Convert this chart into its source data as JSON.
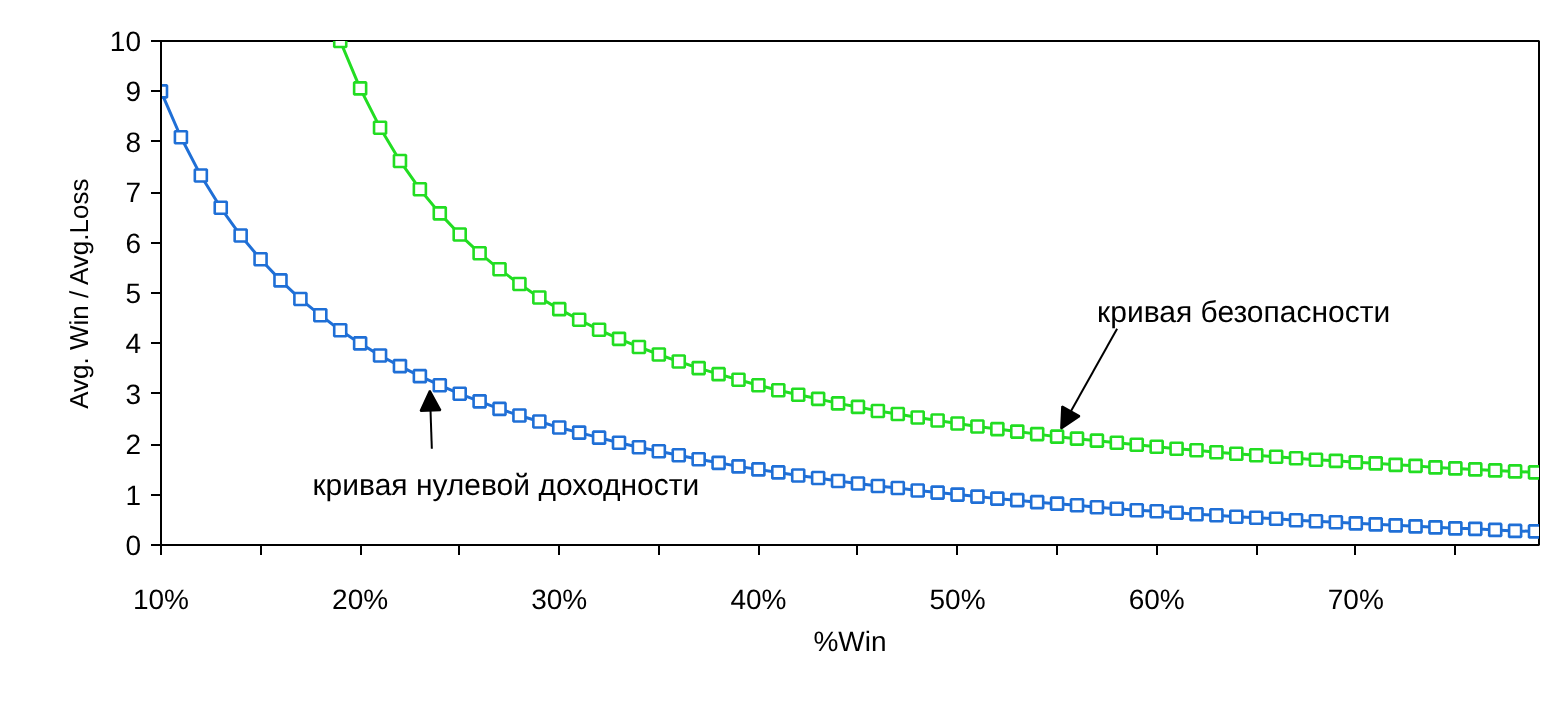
{
  "chart_data": {
    "type": "line",
    "xlabel": "%Win",
    "ylabel": "Avg. Win / Avg.Loss",
    "xlim": [
      10,
      79.2
    ],
    "ylim": [
      0,
      10
    ],
    "xticks": [
      {
        "value": 10,
        "label": "10%"
      },
      {
        "value": 15,
        "label": null
      },
      {
        "value": 20,
        "label": "20%"
      },
      {
        "value": 25,
        "label": null
      },
      {
        "value": 30,
        "label": "30%"
      },
      {
        "value": 35,
        "label": null
      },
      {
        "value": 40,
        "label": "40%"
      },
      {
        "value": 45,
        "label": null
      },
      {
        "value": 50,
        "label": "50%"
      },
      {
        "value": 55,
        "label": null
      },
      {
        "value": 60,
        "label": "60%"
      },
      {
        "value": 65,
        "label": null
      },
      {
        "value": 70,
        "label": "70%"
      },
      {
        "value": 75,
        "label": null
      }
    ],
    "yticks": [
      0,
      1,
      2,
      3,
      4,
      5,
      6,
      7,
      8,
      9,
      10
    ],
    "grid": false,
    "marker": "square",
    "line_style": "solid",
    "annotations": [
      {
        "text": "кривая безопасности",
        "x": 55,
        "y": 2.15
      },
      {
        "text": "кривая нулевой доходности",
        "x": 23.5,
        "y": 3.3
      }
    ],
    "series": [
      {
        "color": "#1f6fd6",
        "x": [
          10,
          11,
          12,
          13,
          14,
          15,
          16,
          17,
          18,
          19,
          20,
          21,
          22,
          23,
          24,
          25,
          26,
          27,
          28,
          29,
          30,
          31,
          32,
          33,
          34,
          35,
          36,
          37,
          38,
          39,
          40,
          41,
          42,
          43,
          44,
          45,
          46,
          47,
          48,
          49,
          50,
          51,
          52,
          53,
          54,
          55,
          56,
          57,
          58,
          59,
          60,
          61,
          62,
          63,
          64,
          65,
          66,
          67,
          68,
          69,
          70,
          71,
          72,
          73,
          74,
          75,
          76,
          77,
          78,
          79
        ],
        "values": [
          9.0,
          8.09,
          7.33,
          6.69,
          6.14,
          5.67,
          5.25,
          4.88,
          4.56,
          4.26,
          4.0,
          3.76,
          3.55,
          3.35,
          3.17,
          3.0,
          2.85,
          2.7,
          2.57,
          2.45,
          2.33,
          2.23,
          2.13,
          2.03,
          1.94,
          1.86,
          1.78,
          1.7,
          1.63,
          1.56,
          1.5,
          1.44,
          1.38,
          1.33,
          1.27,
          1.22,
          1.17,
          1.13,
          1.08,
          1.04,
          1.0,
          0.96,
          0.92,
          0.89,
          0.85,
          0.82,
          0.79,
          0.75,
          0.72,
          0.69,
          0.67,
          0.64,
          0.61,
          0.59,
          0.56,
          0.54,
          0.52,
          0.49,
          0.47,
          0.45,
          0.43,
          0.41,
          0.39,
          0.37,
          0.35,
          0.33,
          0.32,
          0.3,
          0.28,
          0.27
        ]
      },
      {
        "color": "#22dd22",
        "x": [
          19,
          20,
          21,
          22,
          23,
          24,
          25,
          26,
          27,
          28,
          29,
          30,
          31,
          32,
          33,
          34,
          35,
          36,
          37,
          38,
          39,
          40,
          41,
          42,
          43,
          44,
          45,
          46,
          47,
          48,
          49,
          50,
          51,
          52,
          53,
          54,
          55,
          56,
          57,
          58,
          59,
          60,
          61,
          62,
          63,
          64,
          65,
          66,
          67,
          68,
          69,
          70,
          71,
          72,
          73,
          74,
          75,
          76,
          77,
          78,
          79
        ],
        "values": [
          10.0,
          9.06,
          8.28,
          7.62,
          7.06,
          6.58,
          6.16,
          5.79,
          5.47,
          5.18,
          4.91,
          4.68,
          4.47,
          4.27,
          4.09,
          3.93,
          3.78,
          3.64,
          3.51,
          3.39,
          3.28,
          3.17,
          3.07,
          2.98,
          2.9,
          2.81,
          2.74,
          2.66,
          2.6,
          2.53,
          2.47,
          2.41,
          2.35,
          2.3,
          2.25,
          2.2,
          2.15,
          2.11,
          2.07,
          2.03,
          1.99,
          1.95,
          1.91,
          1.88,
          1.84,
          1.81,
          1.78,
          1.75,
          1.72,
          1.69,
          1.67,
          1.64,
          1.62,
          1.59,
          1.57,
          1.54,
          1.52,
          1.5,
          1.48,
          1.46,
          1.44
        ]
      }
    ]
  }
}
